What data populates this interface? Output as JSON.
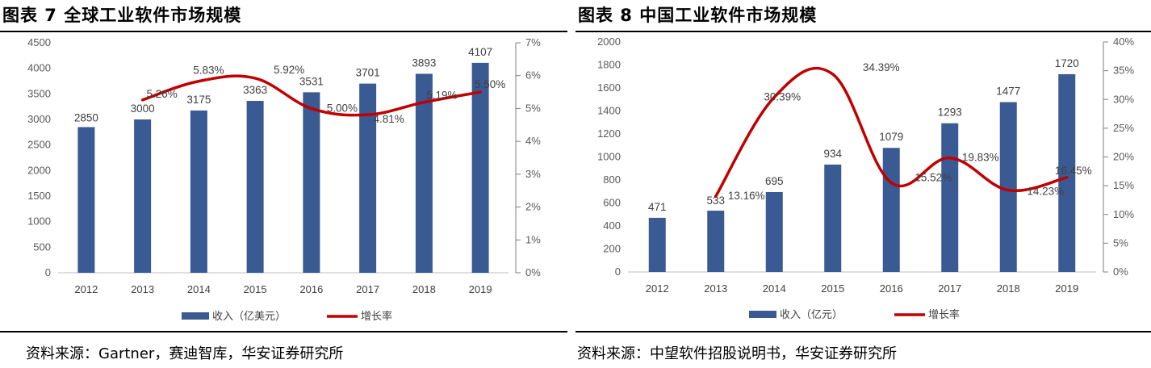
{
  "left": {
    "title": "图表 7 全球工业软件市场规模",
    "source": "资料来源：Gartner，赛迪智库，华安证券研究所"
  },
  "right": {
    "title": "图表 8 中国工业软件市场规模",
    "source": "资料来源：中望软件招股说明书，华安证券研究所"
  },
  "chart_data": [
    {
      "type": "bar",
      "categories": [
        "2012",
        "2013",
        "2014",
        "2015",
        "2016",
        "2017",
        "2018",
        "2019"
      ],
      "series": [
        {
          "name": "收入（亿美元）",
          "type": "bar",
          "axis": "left",
          "color": "#3a5a93",
          "values": [
            2850,
            3000,
            3175,
            3363,
            3531,
            3701,
            3893,
            4107
          ]
        },
        {
          "name": "增长率",
          "type": "line",
          "axis": "right",
          "color": "#c00000",
          "values": [
            null,
            5.26,
            5.83,
            5.92,
            5.0,
            4.81,
            5.19,
            5.5
          ],
          "labels": [
            null,
            "5.26%",
            "5.83%",
            "5.92%",
            "5.00%",
            "4.81%",
            "5.19%",
            "5.50%"
          ]
        }
      ],
      "ylim": [
        0,
        4500
      ],
      "yticks": [
        "0",
        "500",
        "1000",
        "1500",
        "2000",
        "2500",
        "3000",
        "3500",
        "4000",
        "4500"
      ],
      "y2lim": [
        0,
        7
      ],
      "y2ticks": [
        "0%",
        "1%",
        "2%",
        "3%",
        "4%",
        "5%",
        "6%",
        "7%"
      ],
      "legend": "bottom"
    },
    {
      "type": "bar",
      "categories": [
        "2012",
        "2013",
        "2014",
        "2015",
        "2016",
        "2017",
        "2018",
        "2019"
      ],
      "series": [
        {
          "name": "收入（亿元）",
          "type": "bar",
          "axis": "left",
          "color": "#3a5a93",
          "values": [
            471,
            533,
            695,
            934,
            1079,
            1293,
            1477,
            1720
          ]
        },
        {
          "name": "增长率",
          "type": "line",
          "axis": "right",
          "color": "#c00000",
          "values": [
            null,
            13.16,
            30.39,
            34.39,
            15.52,
            19.83,
            14.23,
            16.45
          ],
          "labels": [
            null,
            "13.16%",
            "30.39%",
            "34.39%",
            "15.52%",
            "19.83%",
            "14.23%",
            "16.45%"
          ]
        }
      ],
      "ylim": [
        0,
        2000
      ],
      "yticks": [
        "0",
        "200",
        "400",
        "600",
        "800",
        "1000",
        "1200",
        "1400",
        "1600",
        "1800",
        "2000"
      ],
      "y2lim": [
        0,
        40
      ],
      "y2ticks": [
        "0%",
        "5%",
        "10%",
        "15%",
        "20%",
        "25%",
        "30%",
        "35%",
        "40%"
      ],
      "legend": "bottom"
    }
  ]
}
